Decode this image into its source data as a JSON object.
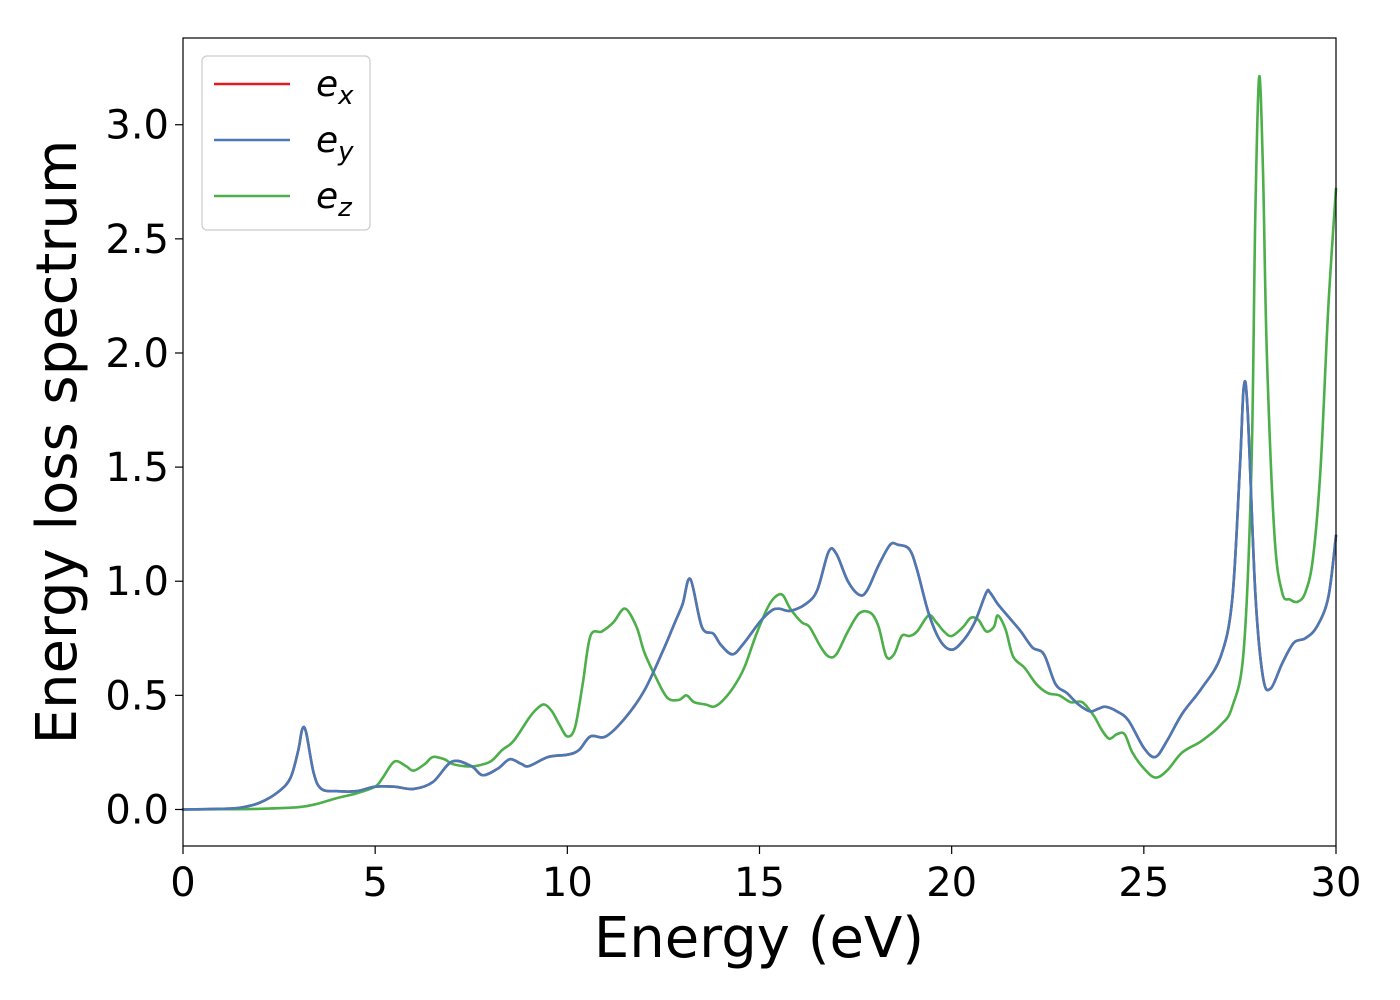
{
  "chart_data": {
    "type": "line",
    "xlabel": "Energy (eV)",
    "ylabel": "Energy loss spectrum",
    "xlim": [
      0,
      30
    ],
    "ylim": [
      -0.16,
      3.38
    ],
    "xticks": [
      "0",
      "5",
      "10",
      "15",
      "20",
      "25",
      "30"
    ],
    "yticks": [
      "0.0",
      "0.5",
      "1.0",
      "1.5",
      "2.0",
      "2.5",
      "3.0"
    ],
    "grid": false,
    "legend_position": "top-left",
    "series": [
      {
        "name": "e",
        "subscript": "x",
        "color": "#e41a1c",
        "x": [
          0,
          1,
          1.5,
          2,
          2.5,
          2.8,
          3.0,
          3.1,
          3.2,
          3.4,
          3.6,
          4.0,
          4.5,
          5.0,
          5.5,
          6.0,
          6.5,
          7.0,
          7.5,
          7.8,
          8.2,
          8.5,
          8.8,
          9.0,
          9.5,
          10.0,
          10.3,
          10.6,
          11.0,
          11.5,
          12.0,
          12.5,
          12.8,
          13.0,
          13.2,
          13.5,
          13.8,
          14.0,
          14.3,
          14.6,
          15.0,
          15.3,
          15.5,
          15.8,
          16.2,
          16.5,
          16.8,
          17.0,
          17.3,
          17.6,
          17.8,
          18.1,
          18.4,
          18.6,
          18.9,
          19.1,
          19.4,
          19.7,
          20.0,
          20.3,
          20.6,
          20.9,
          21.0,
          21.2,
          21.5,
          21.8,
          22.1,
          22.4,
          22.7,
          23.0,
          23.3,
          23.6,
          23.8,
          24.0,
          24.3,
          24.6,
          25.0,
          25.3,
          25.6,
          26.0,
          26.5,
          27.0,
          27.3,
          27.5,
          27.6,
          27.7,
          27.9,
          28.1,
          28.3,
          28.6,
          28.9,
          29.2,
          29.5,
          29.8,
          30.0
        ],
        "y": [
          0,
          0.003,
          0.008,
          0.03,
          0.08,
          0.14,
          0.26,
          0.35,
          0.34,
          0.16,
          0.09,
          0.08,
          0.08,
          0.1,
          0.1,
          0.09,
          0.12,
          0.21,
          0.19,
          0.15,
          0.18,
          0.22,
          0.2,
          0.19,
          0.23,
          0.24,
          0.26,
          0.32,
          0.32,
          0.4,
          0.52,
          0.7,
          0.82,
          0.9,
          1.01,
          0.8,
          0.77,
          0.72,
          0.68,
          0.73,
          0.82,
          0.87,
          0.88,
          0.87,
          0.9,
          0.96,
          1.13,
          1.12,
          1.0,
          0.94,
          0.96,
          1.07,
          1.16,
          1.16,
          1.14,
          1.05,
          0.86,
          0.74,
          0.7,
          0.74,
          0.82,
          0.95,
          0.95,
          0.9,
          0.84,
          0.78,
          0.71,
          0.68,
          0.55,
          0.51,
          0.46,
          0.43,
          0.44,
          0.45,
          0.43,
          0.39,
          0.27,
          0.23,
          0.3,
          0.42,
          0.53,
          0.67,
          0.92,
          1.5,
          1.85,
          1.75,
          0.95,
          0.58,
          0.53,
          0.64,
          0.73,
          0.75,
          0.8,
          0.93,
          1.2
        ]
      },
      {
        "name": "e",
        "subscript": "y",
        "color": "#4a7ab5",
        "x": [
          0,
          1,
          1.5,
          2,
          2.5,
          2.8,
          3.0,
          3.1,
          3.2,
          3.4,
          3.6,
          4.0,
          4.5,
          5.0,
          5.5,
          6.0,
          6.5,
          7.0,
          7.5,
          7.8,
          8.2,
          8.5,
          8.8,
          9.0,
          9.5,
          10.0,
          10.3,
          10.6,
          11.0,
          11.5,
          12.0,
          12.5,
          12.8,
          13.0,
          13.2,
          13.5,
          13.8,
          14.0,
          14.3,
          14.6,
          15.0,
          15.3,
          15.5,
          15.8,
          16.2,
          16.5,
          16.8,
          17.0,
          17.3,
          17.6,
          17.8,
          18.1,
          18.4,
          18.6,
          18.9,
          19.1,
          19.4,
          19.7,
          20.0,
          20.3,
          20.6,
          20.9,
          21.0,
          21.2,
          21.5,
          21.8,
          22.1,
          22.4,
          22.7,
          23.0,
          23.3,
          23.6,
          23.8,
          24.0,
          24.3,
          24.6,
          25.0,
          25.3,
          25.6,
          26.0,
          26.5,
          27.0,
          27.3,
          27.5,
          27.6,
          27.7,
          27.9,
          28.1,
          28.3,
          28.6,
          28.9,
          29.2,
          29.5,
          29.8,
          30.0
        ],
        "y": [
          0,
          0.003,
          0.008,
          0.03,
          0.08,
          0.14,
          0.26,
          0.35,
          0.34,
          0.16,
          0.09,
          0.08,
          0.08,
          0.1,
          0.1,
          0.09,
          0.12,
          0.21,
          0.19,
          0.15,
          0.18,
          0.22,
          0.2,
          0.19,
          0.23,
          0.24,
          0.26,
          0.32,
          0.32,
          0.4,
          0.52,
          0.7,
          0.82,
          0.9,
          1.01,
          0.8,
          0.77,
          0.72,
          0.68,
          0.73,
          0.82,
          0.87,
          0.88,
          0.87,
          0.9,
          0.96,
          1.13,
          1.12,
          1.0,
          0.94,
          0.96,
          1.07,
          1.16,
          1.16,
          1.14,
          1.05,
          0.86,
          0.74,
          0.7,
          0.74,
          0.82,
          0.95,
          0.95,
          0.9,
          0.84,
          0.78,
          0.71,
          0.68,
          0.55,
          0.51,
          0.46,
          0.43,
          0.44,
          0.45,
          0.43,
          0.39,
          0.27,
          0.23,
          0.3,
          0.42,
          0.53,
          0.67,
          0.92,
          1.5,
          1.85,
          1.75,
          0.95,
          0.58,
          0.53,
          0.64,
          0.73,
          0.75,
          0.8,
          0.93,
          1.2
        ]
      },
      {
        "name": "e",
        "subscript": "z",
        "color": "#4daf4a",
        "x": [
          0,
          1,
          2,
          3,
          3.5,
          4,
          4.5,
          5.0,
          5.2,
          5.5,
          5.8,
          6.0,
          6.3,
          6.5,
          6.8,
          7.0,
          7.3,
          7.6,
          8.0,
          8.3,
          8.6,
          9.0,
          9.2,
          9.4,
          9.6,
          9.8,
          10.0,
          10.2,
          10.4,
          10.6,
          10.9,
          11.2,
          11.5,
          11.8,
          12.0,
          12.3,
          12.6,
          12.9,
          13.1,
          13.3,
          13.6,
          13.8,
          14.0,
          14.3,
          14.6,
          14.9,
          15.2,
          15.4,
          15.6,
          15.8,
          16.1,
          16.3,
          16.6,
          16.8,
          17.0,
          17.3,
          17.6,
          17.9,
          18.1,
          18.3,
          18.5,
          18.7,
          18.9,
          19.1,
          19.4,
          19.6,
          19.8,
          20.0,
          20.3,
          20.5,
          20.7,
          20.9,
          21.1,
          21.2,
          21.4,
          21.6,
          21.9,
          22.2,
          22.5,
          22.8,
          23.1,
          23.4,
          23.7,
          23.9,
          24.1,
          24.3,
          24.5,
          24.7,
          25.0,
          25.3,
          25.6,
          26.0,
          26.5,
          27.0,
          27.3,
          27.6,
          27.8,
          27.9,
          28.0,
          28.1,
          28.2,
          28.4,
          28.6,
          28.8,
          29.0,
          29.2,
          29.4,
          29.6,
          29.8,
          30.0
        ],
        "y": [
          0,
          0.001,
          0.003,
          0.01,
          0.025,
          0.05,
          0.07,
          0.1,
          0.14,
          0.21,
          0.19,
          0.17,
          0.2,
          0.23,
          0.22,
          0.2,
          0.19,
          0.19,
          0.21,
          0.26,
          0.3,
          0.4,
          0.44,
          0.46,
          0.43,
          0.37,
          0.32,
          0.36,
          0.55,
          0.76,
          0.78,
          0.82,
          0.88,
          0.8,
          0.69,
          0.58,
          0.49,
          0.48,
          0.5,
          0.47,
          0.46,
          0.45,
          0.47,
          0.53,
          0.62,
          0.76,
          0.88,
          0.93,
          0.94,
          0.88,
          0.82,
          0.8,
          0.71,
          0.67,
          0.68,
          0.78,
          0.86,
          0.86,
          0.8,
          0.67,
          0.68,
          0.76,
          0.76,
          0.78,
          0.85,
          0.82,
          0.78,
          0.76,
          0.8,
          0.84,
          0.83,
          0.78,
          0.8,
          0.85,
          0.79,
          0.67,
          0.62,
          0.55,
          0.51,
          0.5,
          0.47,
          0.47,
          0.41,
          0.35,
          0.31,
          0.33,
          0.33,
          0.25,
          0.18,
          0.14,
          0.17,
          0.25,
          0.3,
          0.37,
          0.45,
          0.7,
          1.5,
          2.6,
          3.21,
          2.8,
          2.0,
          1.2,
          0.95,
          0.92,
          0.91,
          0.95,
          1.1,
          1.5,
          2.2,
          2.72
        ]
      }
    ]
  }
}
